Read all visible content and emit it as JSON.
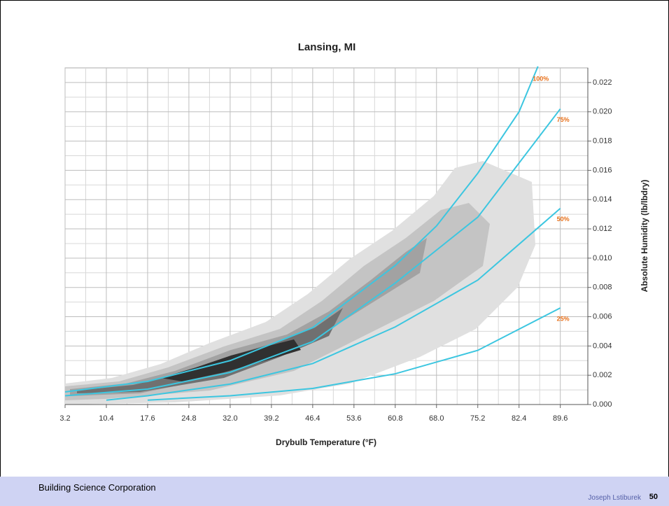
{
  "chart_data": {
    "type": "line",
    "title": "Lansing, MI",
    "x_label": "Drybulb Temperature (°F)",
    "y_label": "Absolute Humidity (lb/lbdry)",
    "xlim": [
      3.2,
      94.4
    ],
    "ylim": [
      0,
      0.023
    ],
    "xticks": [
      3.2,
      10.4,
      17.6,
      24.8,
      {
        "value": 32,
        "label": "32.0"
      },
      39.2,
      46.4,
      53.6,
      60.8,
      {
        "value": 68,
        "label": "68.0"
      },
      75.2,
      82.4,
      89.6
    ],
    "yticks": [
      {
        "value": 0,
        "label": "0.000"
      },
      {
        "value": 0.002,
        "label": "0.002"
      },
      {
        "value": 0.004,
        "label": "0.004"
      },
      {
        "value": 0.006,
        "label": "0.006"
      },
      {
        "value": 0.008,
        "label": "0.008"
      },
      {
        "value": 0.01,
        "label": "0.010"
      },
      {
        "value": 0.012,
        "label": "0.012"
      },
      {
        "value": 0.014,
        "label": "0.014"
      },
      {
        "value": 0.016,
        "label": "0.016"
      },
      {
        "value": 0.018,
        "label": "0.018"
      },
      {
        "value": 0.02,
        "label": "0.020"
      },
      {
        "value": 0.022,
        "label": "0.022"
      }
    ],
    "grid": true,
    "y_axis_side": "right",
    "label_color": "#e8701a",
    "series": [
      {
        "name": "100%",
        "color": "#3cc6e0",
        "x": [
          3.2,
          17.6,
          32,
          46.4,
          60.8,
          68,
          75.2,
          82.4,
          85.7
        ],
        "values": [
          0.00086,
          0.00158,
          0.003,
          0.00525,
          0.0095,
          0.0122,
          0.0158,
          0.02,
          0.0231
        ]
      },
      {
        "name": "75%",
        "color": "#3cc6e0",
        "x": [
          3.2,
          17.6,
          32,
          46.4,
          60.8,
          75.2,
          89.6
        ],
        "values": [
          0.0006,
          0.00105,
          0.0022,
          0.0043,
          0.0083,
          0.0128,
          0.0202
        ]
      },
      {
        "name": "50%",
        "color": "#3cc6e0",
        "x": [
          10.4,
          17.6,
          32,
          46.4,
          60.8,
          75.2,
          89.6
        ],
        "values": [
          0.0003,
          0.0006,
          0.0014,
          0.0028,
          0.0053,
          0.0085,
          0.0134
        ]
      },
      {
        "name": "25%",
        "color": "#3cc6e0",
        "x": [
          17.6,
          32,
          46.4,
          60.8,
          75.2,
          89.6
        ],
        "values": [
          0.0003,
          0.0006,
          0.0011,
          0.0021,
          0.0037,
          0.0066
        ]
      }
    ]
  },
  "footer": {
    "organization": "Building Science Corporation",
    "author": "Joseph Lstiburek",
    "page": "50"
  }
}
